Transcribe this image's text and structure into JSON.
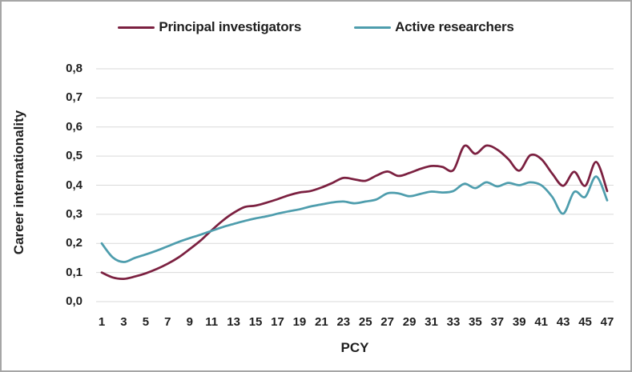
{
  "chart_data": {
    "type": "line",
    "title": "",
    "xlabel": "PCY",
    "ylabel": "Career internationality",
    "ylim": [
      0,
      0.8
    ],
    "grid": "horizontal",
    "gridline_color": "#d9d9d9",
    "text_color": "#1f1f1f",
    "border_color": "#a6a6a6",
    "legend_position": "top",
    "decimal_separator": ",",
    "x": [
      1,
      2,
      3,
      4,
      5,
      6,
      7,
      8,
      9,
      10,
      11,
      12,
      13,
      14,
      15,
      16,
      17,
      18,
      19,
      20,
      21,
      22,
      23,
      24,
      25,
      26,
      27,
      28,
      29,
      30,
      31,
      32,
      33,
      34,
      35,
      36,
      37,
      38,
      39,
      40,
      41,
      42,
      43,
      44,
      45,
      46,
      47
    ],
    "x_ticks": [
      1,
      3,
      5,
      7,
      9,
      11,
      13,
      15,
      17,
      19,
      21,
      23,
      25,
      27,
      29,
      31,
      33,
      35,
      37,
      39,
      41,
      43,
      45,
      47
    ],
    "x_tick_labels": [
      "1",
      "3",
      "5",
      "7",
      "9",
      "11",
      "13",
      "15",
      "17",
      "19",
      "21",
      "23",
      "25",
      "27",
      "29",
      "31",
      "33",
      "35",
      "37",
      "39",
      "41",
      "43",
      "45",
      "47"
    ],
    "y_tick_values": [
      0,
      0.1,
      0.2,
      0.3,
      0.4,
      0.5,
      0.6,
      0.7,
      0.8
    ],
    "y_tick_labels": [
      "0,0",
      "0,1",
      "0,2",
      "0,3",
      "0,4",
      "0,5",
      "0,6",
      "0,7",
      "0,8"
    ],
    "series": [
      {
        "name": "Principal investigators",
        "color": "#7B2040",
        "values": [
          0.1,
          0.083,
          0.078,
          0.086,
          0.097,
          0.112,
          0.13,
          0.152,
          0.18,
          0.21,
          0.245,
          0.278,
          0.305,
          0.325,
          0.33,
          0.34,
          0.352,
          0.365,
          0.375,
          0.38,
          0.392,
          0.408,
          0.425,
          0.42,
          0.415,
          0.433,
          0.447,
          0.432,
          0.442,
          0.456,
          0.466,
          0.463,
          0.452,
          0.535,
          0.508,
          0.536,
          0.522,
          0.49,
          0.45,
          0.503,
          0.49,
          0.44,
          0.398,
          0.446,
          0.398,
          0.48,
          0.38
        ]
      },
      {
        "name": "Active researchers",
        "color": "#4E9DAD",
        "values": [
          0.2,
          0.152,
          0.136,
          0.15,
          0.162,
          0.175,
          0.19,
          0.205,
          0.218,
          0.23,
          0.243,
          0.256,
          0.267,
          0.277,
          0.286,
          0.293,
          0.302,
          0.31,
          0.317,
          0.327,
          0.334,
          0.341,
          0.344,
          0.338,
          0.344,
          0.351,
          0.372,
          0.372,
          0.362,
          0.37,
          0.378,
          0.375,
          0.38,
          0.405,
          0.39,
          0.41,
          0.396,
          0.408,
          0.4,
          0.41,
          0.4,
          0.36,
          0.302,
          0.377,
          0.36,
          0.43,
          0.348
        ]
      }
    ]
  }
}
